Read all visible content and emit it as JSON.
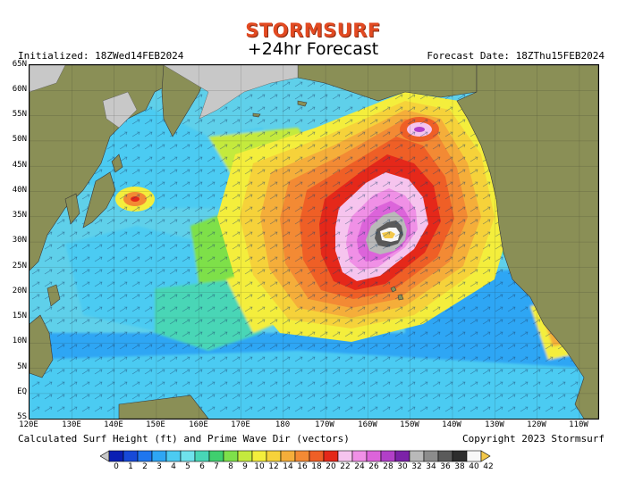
{
  "header": {
    "brand": "STORMSURF",
    "title": "+24hr Forecast",
    "initialized": "Initialized: 18ZWed14FEB2024",
    "forecast_date": "Forecast Date: 18ZThu15FEB2024"
  },
  "footer": {
    "caption": "Calculated Surf Height (ft) and Prime Wave Dir (vectors)",
    "copyright": "Copyright 2023 Stormsurf"
  },
  "map": {
    "lat_labels": [
      "65N",
      "60N",
      "55N",
      "50N",
      "45N",
      "40N",
      "35N",
      "30N",
      "25N",
      "20N",
      "15N",
      "10N",
      "5N",
      "EQ",
      "5S"
    ],
    "lon_labels": [
      "120E",
      "130E",
      "140E",
      "150E",
      "160E",
      "170E",
      "180",
      "170W",
      "160W",
      "150W",
      "140W",
      "130W",
      "120W",
      "110W"
    ],
    "colors": {
      "land": "#8a8f56",
      "ice": "#c8c8c8",
      "ocean_base": "#5fd0ea"
    }
  },
  "legend": {
    "values": [
      "0",
      "1",
      "2",
      "3",
      "4",
      "5",
      "6",
      "7",
      "8",
      "9",
      "10",
      "12",
      "14",
      "16",
      "18",
      "20",
      "22",
      "24",
      "26",
      "28",
      "30",
      "32",
      "34",
      "36",
      "38",
      "40",
      "42"
    ],
    "colors": [
      "#0b1fb4",
      "#1749d8",
      "#1f76ee",
      "#2ea6f4",
      "#4ccbf2",
      "#6fe2ec",
      "#48d6b6",
      "#3fcf6e",
      "#7ee04a",
      "#c4ea3e",
      "#f4ee3c",
      "#f6d23a",
      "#f5ae3a",
      "#f38a34",
      "#ef5f26",
      "#e5281a",
      "#f6c4ee",
      "#f090e6",
      "#dc64da",
      "#b23fc8",
      "#7c22a8",
      "#b9b9b9",
      "#8c8c8c",
      "#5a5a5a",
      "#2e2e2e",
      "#f7f7f7",
      "#f3c84a"
    ]
  }
}
